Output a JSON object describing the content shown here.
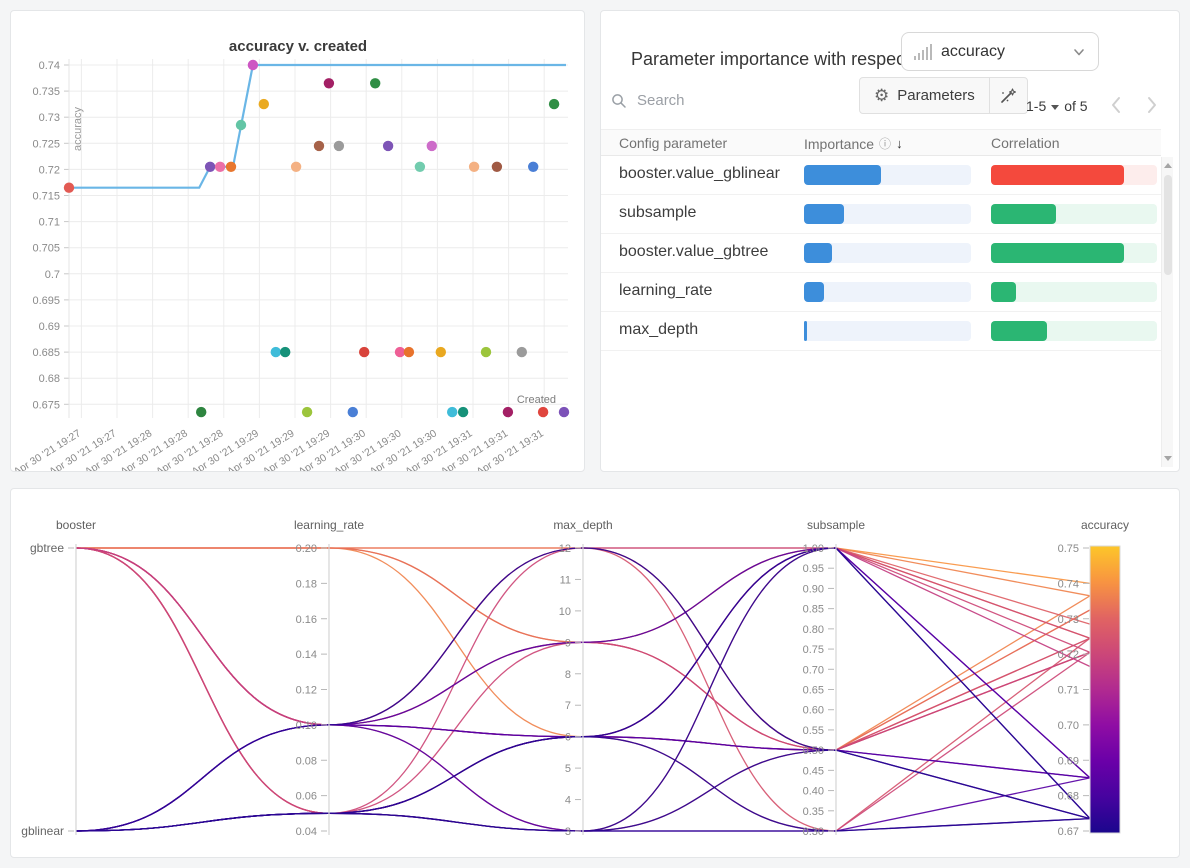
{
  "importance_panel": {
    "title": "Parameter importance with respect to",
    "metric": "accuracy",
    "search_placeholder": "Search",
    "parameters_label": "Parameters",
    "pagination": {
      "range_label": "1-5",
      "of_label": "of 5"
    },
    "table": {
      "col_parameter": "Config parameter",
      "col_importance": "Importance",
      "col_correlation": "Correlation",
      "importance_fill": "#3d8edb",
      "importance_track": "#eef3fb",
      "rows": [
        {
          "parameter": "booster.value_gblinear",
          "importance": 0.46,
          "correlation": 0.8,
          "corr_fill": "#f4493d",
          "corr_track": "#fdedec"
        },
        {
          "parameter": "subsample",
          "importance": 0.24,
          "correlation": 0.39,
          "corr_fill": "#2bb673",
          "corr_track": "#e9f8f0"
        },
        {
          "parameter": "booster.value_gbtree",
          "importance": 0.17,
          "correlation": 0.8,
          "corr_fill": "#2bb673",
          "corr_track": "#e9f8f0"
        },
        {
          "parameter": "learning_rate",
          "importance": 0.12,
          "correlation": 0.15,
          "corr_fill": "#2bb673",
          "corr_track": "#e9f8f0"
        },
        {
          "parameter": "max_depth",
          "importance": 0.02,
          "correlation": 0.34,
          "corr_fill": "#2bb673",
          "corr_track": "#e9f8f0"
        }
      ]
    }
  },
  "chart_data": [
    {
      "type": "scatter",
      "title": "accuracy v. created",
      "xlabel": "Created",
      "ylabel": "accuracy",
      "x_tick_labels": [
        "Apr 30 '21 19:27",
        "Apr 30 '21 19:27",
        "Apr 30 '21 19:28",
        "Apr 30 '21 19:28",
        "Apr 30 '21 19:28",
        "Apr 30 '21 19:29",
        "Apr 30 '21 19:29",
        "Apr 30 '21 19:29",
        "Apr 30 '21 19:30",
        "Apr 30 '21 19:30",
        "Apr 30 '21 19:30",
        "Apr 30 '21 19:31",
        "Apr 30 '21 19:31",
        "Apr 30 '21 19:31"
      ],
      "y_ticks": [
        0.74,
        0.735,
        0.73,
        0.725,
        0.72,
        0.715,
        0.71,
        0.705,
        0.7,
        0.695,
        0.69,
        0.685,
        0.68,
        0.675
      ],
      "line_color": "#6ab6e6",
      "line_points_xy": [
        [
          0,
          0.7165
        ],
        [
          0.262,
          0.7165
        ],
        [
          0.284,
          0.7205
        ],
        [
          0.33,
          0.7205
        ],
        [
          0.37,
          0.74
        ],
        [
          1,
          0.74
        ]
      ],
      "points_xyc": [
        [
          0.0,
          0.7165,
          "#e25a53"
        ],
        [
          0.284,
          0.7205,
          "#7d54b6"
        ],
        [
          0.304,
          0.7205,
          "#ec6fa7"
        ],
        [
          0.326,
          0.7205,
          "#e8772f"
        ],
        [
          0.346,
          0.7285,
          "#63c5a5"
        ],
        [
          0.37,
          0.74,
          "#cd56c3"
        ],
        [
          0.392,
          0.7325,
          "#eaaa21"
        ],
        [
          0.457,
          0.7205,
          "#f4b183"
        ],
        [
          0.503,
          0.7245,
          "#a66249"
        ],
        [
          0.523,
          0.7365,
          "#a32065"
        ],
        [
          0.543,
          0.7245,
          "#9b9b9b"
        ],
        [
          0.616,
          0.7365,
          "#2f8e44"
        ],
        [
          0.642,
          0.7245,
          "#7d54b6"
        ],
        [
          0.706,
          0.7205,
          "#72ccae"
        ],
        [
          0.73,
          0.7245,
          "#cd6cc9"
        ],
        [
          0.815,
          0.7205,
          "#f4b183"
        ],
        [
          0.861,
          0.7205,
          "#a05a44"
        ],
        [
          0.934,
          0.7205,
          "#4a7fd6"
        ],
        [
          0.976,
          0.7325,
          "#2f8e44"
        ],
        [
          0.416,
          0.685,
          "#3fbcd9"
        ],
        [
          0.435,
          0.685,
          "#169179"
        ],
        [
          0.594,
          0.685,
          "#d8433b"
        ],
        [
          0.666,
          0.685,
          "#ee5f96"
        ],
        [
          0.684,
          0.685,
          "#e8732c"
        ],
        [
          0.748,
          0.685,
          "#e9a820"
        ],
        [
          0.839,
          0.685,
          "#9cc53c"
        ],
        [
          0.911,
          0.685,
          "#9b9b9b"
        ],
        [
          0.266,
          0.6735,
          "#2e8540"
        ],
        [
          0.479,
          0.6735,
          "#9cc53c"
        ],
        [
          0.571,
          0.6735,
          "#4a7fd6"
        ],
        [
          0.771,
          0.6735,
          "#3fbcd9"
        ],
        [
          0.793,
          0.6735,
          "#169179"
        ],
        [
          0.883,
          0.6735,
          "#a32065"
        ],
        [
          0.954,
          0.6735,
          "#e0453e"
        ],
        [
          0.996,
          0.6735,
          "#7c52b8"
        ]
      ]
    },
    {
      "type": "parallel_coordinates",
      "axes": [
        {
          "name": "booster",
          "kind": "categorical",
          "ticks": [
            "gbtree",
            "gblinear"
          ]
        },
        {
          "name": "learning_rate",
          "kind": "numeric",
          "max": 0.2,
          "min": 0.04,
          "ticks": [
            "0.20",
            "0.18",
            "0.16",
            "0.14",
            "0.12",
            "0.10",
            "0.08",
            "0.06",
            "0.04"
          ]
        },
        {
          "name": "max_depth",
          "kind": "numeric",
          "max": 12,
          "min": 3,
          "ticks": [
            "12",
            "11",
            "10",
            "9",
            "8",
            "7",
            "6",
            "5",
            "4",
            "3"
          ]
        },
        {
          "name": "subsample",
          "kind": "numeric",
          "max": 1.0,
          "min": 0.3,
          "ticks": [
            "1.00",
            "0.95",
            "0.90",
            "0.85",
            "0.80",
            "0.75",
            "0.70",
            "0.65",
            "0.60",
            "0.55",
            "0.50",
            "0.45",
            "0.40",
            "0.35",
            "0.30"
          ]
        },
        {
          "name": "accuracy",
          "kind": "colorbar",
          "max": 0.75,
          "min": 0.67,
          "ticks": [
            "0.75",
            "0.74",
            "0.73",
            "0.72",
            "0.71",
            "0.70",
            "0.69",
            "0.68",
            "0.67"
          ]
        }
      ],
      "color_metric": "accuracy",
      "color_scale": [
        [
          0,
          "#1b068d"
        ],
        [
          0.125,
          "#46039f"
        ],
        [
          0.25,
          "#6a00a8"
        ],
        [
          0.375,
          "#8f0da4"
        ],
        [
          0.5,
          "#b12a90"
        ],
        [
          0.625,
          "#cc4778"
        ],
        [
          0.75,
          "#e16462"
        ],
        [
          0.875,
          "#f89441"
        ],
        [
          1,
          "#fdc629"
        ]
      ],
      "runs": [
        {
          "booster": "gbtree",
          "learning_rate": 0.2,
          "max_depth": 12,
          "subsample": 1.0,
          "accuracy": 0.74
        },
        {
          "booster": "gbtree",
          "learning_rate": 0.2,
          "max_depth": 9,
          "subsample": 1.0,
          "accuracy": 0.7365
        },
        {
          "booster": "gbtree",
          "learning_rate": 0.2,
          "max_depth": 6,
          "subsample": 0.5,
          "accuracy": 0.7365
        },
        {
          "booster": "gbtree",
          "learning_rate": 0.2,
          "max_depth": 9,
          "subsample": 0.5,
          "accuracy": 0.7325
        },
        {
          "booster": "gbtree",
          "learning_rate": 0.2,
          "max_depth": 12,
          "subsample": 0.5,
          "accuracy": 0.7325
        },
        {
          "booster": "gbtree",
          "learning_rate": 0.1,
          "max_depth": 9,
          "subsample": 1.0,
          "accuracy": 0.7285
        },
        {
          "booster": "gbtree",
          "learning_rate": 0.1,
          "max_depth": 6,
          "subsample": 1.0,
          "accuracy": 0.7245
        },
        {
          "booster": "gbtree",
          "learning_rate": 0.1,
          "max_depth": 6,
          "subsample": 0.5,
          "accuracy": 0.7245
        },
        {
          "booster": "gbtree",
          "learning_rate": 0.1,
          "max_depth": 9,
          "subsample": 0.5,
          "accuracy": 0.7245
        },
        {
          "booster": "gbtree",
          "learning_rate": 0.1,
          "max_depth": 12,
          "subsample": 0.3,
          "accuracy": 0.7245
        },
        {
          "booster": "gbtree",
          "learning_rate": 0.05,
          "max_depth": 6,
          "subsample": 1.0,
          "accuracy": 0.7245
        },
        {
          "booster": "gbtree",
          "learning_rate": 0.05,
          "max_depth": 9,
          "subsample": 0.5,
          "accuracy": 0.7205
        },
        {
          "booster": "gbtree",
          "learning_rate": 0.05,
          "max_depth": 3,
          "subsample": 1.0,
          "accuracy": 0.7205
        },
        {
          "booster": "gbtree",
          "learning_rate": 0.05,
          "max_depth": 6,
          "subsample": 0.3,
          "accuracy": 0.7205
        },
        {
          "booster": "gbtree",
          "learning_rate": 0.1,
          "max_depth": 3,
          "subsample": 0.5,
          "accuracy": 0.7205
        },
        {
          "booster": "gbtree",
          "learning_rate": 0.05,
          "max_depth": 12,
          "subsample": 0.5,
          "accuracy": 0.7205
        },
        {
          "booster": "gbtree",
          "learning_rate": 0.1,
          "max_depth": 12,
          "subsample": 1.0,
          "accuracy": 0.7165
        },
        {
          "booster": "gblinear",
          "learning_rate": 0.1,
          "max_depth": 6,
          "subsample": 0.5,
          "accuracy": 0.685
        },
        {
          "booster": "gblinear",
          "learning_rate": 0.1,
          "max_depth": 9,
          "subsample": 1.0,
          "accuracy": 0.685
        },
        {
          "booster": "gblinear",
          "learning_rate": 0.1,
          "max_depth": 6,
          "subsample": 1.0,
          "accuracy": 0.685
        },
        {
          "booster": "gblinear",
          "learning_rate": 0.05,
          "max_depth": 6,
          "subsample": 0.5,
          "accuracy": 0.685
        },
        {
          "booster": "gblinear",
          "learning_rate": 0.1,
          "max_depth": 3,
          "subsample": 0.3,
          "accuracy": 0.685
        },
        {
          "booster": "gblinear",
          "learning_rate": 0.05,
          "max_depth": 3,
          "subsample": 0.5,
          "accuracy": 0.6735
        },
        {
          "booster": "gblinear",
          "learning_rate": 0.05,
          "max_depth": 6,
          "subsample": 0.3,
          "accuracy": 0.6735
        },
        {
          "booster": "gblinear",
          "learning_rate": 0.05,
          "max_depth": 3,
          "subsample": 1.0,
          "accuracy": 0.6735
        },
        {
          "booster": "gblinear",
          "learning_rate": 0.1,
          "max_depth": 12,
          "subsample": 0.5,
          "accuracy": 0.6735
        },
        {
          "booster": "gblinear",
          "learning_rate": 0.05,
          "max_depth": 3,
          "subsample": 0.3,
          "accuracy": 0.6735
        },
        {
          "booster": "gblinear",
          "learning_rate": 0.05,
          "max_depth": 6,
          "subsample": 1.0,
          "accuracy": 0.6735
        }
      ]
    }
  ]
}
